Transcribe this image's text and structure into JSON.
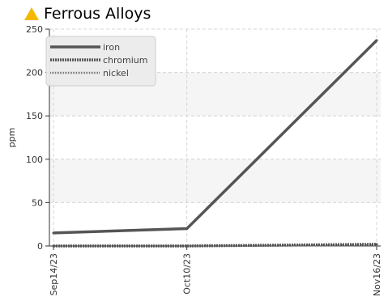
{
  "widget": {
    "title": "Ferrous Alloys",
    "title_icon": "warning-triangle-icon",
    "title_icon_color": "#f5b800"
  },
  "chart_data": {
    "type": "line",
    "title": "Ferrous Alloys",
    "ylabel": "ppm",
    "xlabel": "",
    "ylim": [
      0,
      250
    ],
    "yticks": [
      0,
      50,
      100,
      150,
      200,
      250
    ],
    "x": [
      "2023-09-14",
      "2023-10-10",
      "2023-11-16"
    ],
    "xtick_labels": [
      "Sep14/23",
      "Oct10/23",
      "Nov16/23"
    ],
    "series": [
      {
        "name": "iron",
        "values": [
          15,
          20,
          237
        ],
        "color": "#555555",
        "style": "solid"
      },
      {
        "name": "chromium",
        "values": [
          0,
          0,
          2
        ],
        "color": "#555555",
        "style": "dense-dashed"
      },
      {
        "name": "nickel",
        "values": [
          0,
          0,
          1
        ],
        "color": "#777777",
        "style": "fine-dotted"
      }
    ],
    "grid": true,
    "legend_position": "top-left"
  }
}
